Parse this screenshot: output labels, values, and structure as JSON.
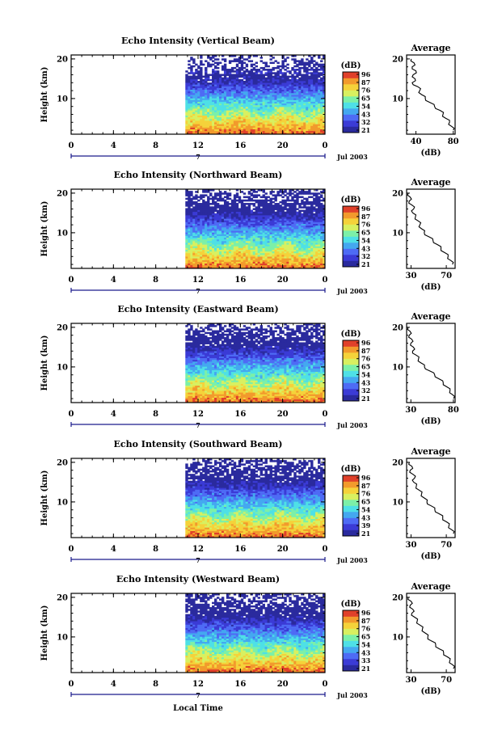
{
  "figure": {
    "x_axis_label": "Local Time",
    "date_label": "Jul 2003",
    "day_marker": "7",
    "height_label": "Height (km)",
    "average_title": "Average",
    "unit_label": "(dB)"
  },
  "chart_data": [
    {
      "type": "heatmap",
      "title": "Echo Intensity (Vertical Beam)",
      "xlabel": "Local Time",
      "ylabel": "Height (km)",
      "x_ticks": [
        "0",
        "4",
        "8",
        "12",
        "16",
        "20",
        "0"
      ],
      "y_ticks": [
        "20",
        "10"
      ],
      "xlim": [
        0,
        24
      ],
      "ylim": [
        1,
        21
      ],
      "data_start_hour": 10.8,
      "colorbar": {
        "label": "(dB)",
        "ticks": [
          "96",
          "87",
          "76",
          "65",
          "54",
          "43",
          "32",
          "21"
        ]
      },
      "average_profile": {
        "title": "Average",
        "xlabel": "(dB)",
        "x_ticks": [
          "40",
          "80"
        ],
        "y_ticks": [
          "20",
          "10"
        ],
        "xlim": [
          30,
          82
        ],
        "points": [
          [
            35,
            20
          ],
          [
            38,
            19
          ],
          [
            36,
            18
          ],
          [
            40,
            17
          ],
          [
            37,
            16
          ],
          [
            39,
            15
          ],
          [
            36,
            14
          ],
          [
            42,
            13
          ],
          [
            44,
            12
          ],
          [
            46,
            11
          ],
          [
            50,
            10
          ],
          [
            55,
            9
          ],
          [
            60,
            8
          ],
          [
            66,
            7
          ],
          [
            69,
            6
          ],
          [
            72,
            5
          ],
          [
            76,
            4
          ],
          [
            78,
            3
          ],
          [
            80,
            2
          ]
        ]
      }
    },
    {
      "type": "heatmap",
      "title": "Echo Intensity (Northward Beam)",
      "xlabel": "Local Time",
      "ylabel": "Height (km)",
      "x_ticks": [
        "0",
        "4",
        "8",
        "12",
        "16",
        "20",
        "0"
      ],
      "y_ticks": [
        "20",
        "10"
      ],
      "xlim": [
        0,
        24
      ],
      "ylim": [
        1,
        21
      ],
      "data_start_hour": 10.8,
      "colorbar": {
        "label": "(dB)",
        "ticks": [
          "96",
          "87",
          "76",
          "65",
          "54",
          "43",
          "32",
          "21"
        ]
      },
      "average_profile": {
        "title": "Average",
        "xlabel": "(dB)",
        "x_ticks": [
          "30",
          "70"
        ],
        "y_ticks": [
          "20",
          "10"
        ],
        "xlim": [
          25,
          80
        ],
        "points": [
          [
            27,
            20
          ],
          [
            29,
            19
          ],
          [
            28,
            18
          ],
          [
            31,
            17
          ],
          [
            33,
            16
          ],
          [
            32,
            15
          ],
          [
            35,
            14
          ],
          [
            38,
            13
          ],
          [
            40,
            12
          ],
          [
            42,
            11
          ],
          [
            45,
            10
          ],
          [
            50,
            9
          ],
          [
            55,
            8
          ],
          [
            60,
            7
          ],
          [
            64,
            6
          ],
          [
            68,
            5
          ],
          [
            72,
            4
          ],
          [
            75,
            3
          ],
          [
            77,
            2
          ]
        ]
      }
    },
    {
      "type": "heatmap",
      "title": "Echo Intensity (Eastward Beam)",
      "xlabel": "Local Time",
      "ylabel": "Height (km)",
      "x_ticks": [
        "0",
        "4",
        "8",
        "12",
        "16",
        "20",
        "0"
      ],
      "y_ticks": [
        "20",
        "10"
      ],
      "xlim": [
        0,
        24
      ],
      "ylim": [
        1,
        21
      ],
      "data_start_hour": 10.8,
      "colorbar": {
        "label": "(dB)",
        "ticks": [
          "96",
          "87",
          "76",
          "65",
          "54",
          "43",
          "32",
          "21"
        ]
      },
      "average_profile": {
        "title": "Average",
        "xlabel": "(dB)",
        "x_ticks": [
          "30",
          "80"
        ],
        "y_ticks": [
          "20",
          "10"
        ],
        "xlim": [
          25,
          82
        ],
        "points": [
          [
            27,
            20
          ],
          [
            29,
            19
          ],
          [
            28,
            18
          ],
          [
            31,
            17
          ],
          [
            30,
            16
          ],
          [
            33,
            15
          ],
          [
            32,
            14
          ],
          [
            36,
            13
          ],
          [
            39,
            12
          ],
          [
            42,
            11
          ],
          [
            46,
            10
          ],
          [
            52,
            9
          ],
          [
            58,
            8
          ],
          [
            63,
            7
          ],
          [
            68,
            6
          ],
          [
            72,
            5
          ],
          [
            76,
            4
          ],
          [
            79,
            3
          ],
          [
            80,
            2
          ]
        ]
      }
    },
    {
      "type": "heatmap",
      "title": "Echo Intensity (Southward Beam)",
      "xlabel": "Local Time",
      "ylabel": "Height (km)",
      "x_ticks": [
        "0",
        "4",
        "8",
        "12",
        "16",
        "20",
        "0"
      ],
      "y_ticks": [
        "20",
        "10"
      ],
      "xlim": [
        0,
        24
      ],
      "ylim": [
        1,
        21
      ],
      "data_start_hour": 10.8,
      "colorbar": {
        "label": "(dB)",
        "ticks": [
          "96",
          "87",
          "76",
          "65",
          "54",
          "43",
          "39",
          "21"
        ]
      },
      "average_profile": {
        "title": "Average",
        "xlabel": "(dB)",
        "x_ticks": [
          "30",
          "70"
        ],
        "y_ticks": [
          "20",
          "10"
        ],
        "xlim": [
          25,
          80
        ],
        "points": [
          [
            28,
            20
          ],
          [
            31,
            19
          ],
          [
            29,
            18
          ],
          [
            32,
            17
          ],
          [
            34,
            16
          ],
          [
            33,
            15
          ],
          [
            36,
            14
          ],
          [
            39,
            13
          ],
          [
            42,
            12
          ],
          [
            45,
            11
          ],
          [
            48,
            10
          ],
          [
            53,
            9
          ],
          [
            57,
            8
          ],
          [
            62,
            7
          ],
          [
            66,
            6
          ],
          [
            70,
            5
          ],
          [
            73,
            4
          ],
          [
            76,
            3
          ],
          [
            78,
            2
          ]
        ]
      }
    },
    {
      "type": "heatmap",
      "title": "Echo Intensity (Westward Beam)",
      "xlabel": "Local Time",
      "ylabel": "Height (km)",
      "x_ticks": [
        "0",
        "4",
        "8",
        "12",
        "16",
        "20",
        "0"
      ],
      "y_ticks": [
        "20",
        "10"
      ],
      "xlim": [
        0,
        24
      ],
      "ylim": [
        1,
        21
      ],
      "data_start_hour": 10.8,
      "colorbar": {
        "label": "(dB)",
        "ticks": [
          "96",
          "87",
          "76",
          "65",
          "54",
          "43",
          "33",
          "21"
        ]
      },
      "average_profile": {
        "title": "Average",
        "xlabel": "(dB)",
        "x_ticks": [
          "30",
          "70"
        ],
        "y_ticks": [
          "20",
          "10"
        ],
        "xlim": [
          25,
          80
        ],
        "points": [
          [
            27,
            20
          ],
          [
            30,
            19
          ],
          [
            29,
            18
          ],
          [
            32,
            17
          ],
          [
            31,
            16
          ],
          [
            34,
            15
          ],
          [
            37,
            14
          ],
          [
            40,
            13
          ],
          [
            43,
            12
          ],
          [
            46,
            11
          ],
          [
            49,
            10
          ],
          [
            53,
            9
          ],
          [
            58,
            8
          ],
          [
            62,
            7
          ],
          [
            67,
            6
          ],
          [
            71,
            5
          ],
          [
            74,
            4
          ],
          [
            77,
            3
          ],
          [
            78,
            2
          ]
        ]
      }
    }
  ],
  "colors": {
    "colormap": [
      "#2a2a9e",
      "#3b3bd6",
      "#4e6bf5",
      "#44a8f0",
      "#4ee0e6",
      "#7cf0a8",
      "#d8f060",
      "#f5d23a",
      "#f29a2c",
      "#e0402a"
    ],
    "axis": "#000000",
    "time_axis": "#1a1a8c"
  }
}
